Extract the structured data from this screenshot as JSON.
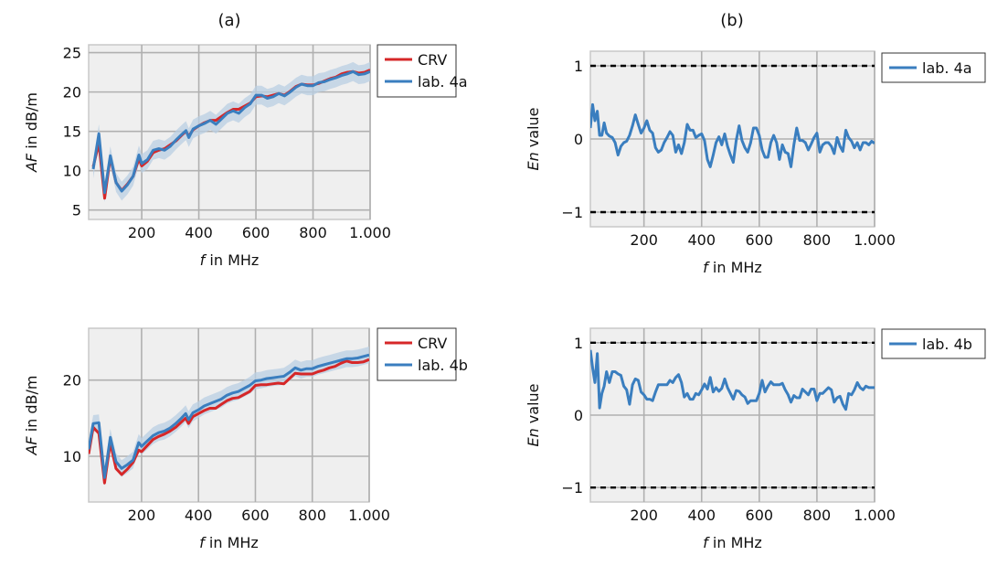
{
  "figure": {
    "panel_labels": [
      "(a)",
      "(b)"
    ]
  },
  "chart_data": [
    {
      "id": "af-4a",
      "panel": "(a)",
      "type": "line",
      "title": "",
      "xlabel_italic": "f",
      "xlabel_rest": " in MHz",
      "ylabel_italic": "AF",
      "ylabel_rest": " in dB/m",
      "xlim": [
        14,
        1000
      ],
      "ylim": [
        3.8,
        26.0
      ],
      "grid": true,
      "xticks": [
        200,
        400,
        600,
        800,
        1000
      ],
      "xtick_labels": [
        "200",
        "400",
        "600",
        "800",
        "1.000"
      ],
      "yticks": [
        5,
        10,
        15,
        20,
        25
      ],
      "ytick_labels": [
        "5",
        "10",
        "15",
        "20",
        "25"
      ],
      "legend_position": "outside-top-right",
      "x": [
        30,
        50,
        70,
        90,
        110,
        130,
        150,
        170,
        190,
        200,
        220,
        240,
        260,
        280,
        300,
        320,
        340,
        355,
        365,
        380,
        400,
        420,
        440,
        460,
        480,
        500,
        520,
        540,
        560,
        580,
        600,
        620,
        640,
        660,
        680,
        700,
        720,
        740,
        760,
        780,
        800,
        820,
        840,
        860,
        880,
        900,
        920,
        940,
        960,
        980,
        1000
      ],
      "series": [
        {
          "name": "CRV",
          "color": "#d62728",
          "values": [
            10.5,
            13.5,
            6.5,
            11.7,
            8.5,
            7.5,
            8.3,
            9.3,
            11.5,
            10.6,
            11.2,
            12.3,
            12.6,
            12.8,
            13.3,
            13.8,
            14.5,
            15.0,
            14.4,
            15.2,
            15.7,
            16.1,
            16.4,
            16.4,
            16.9,
            17.4,
            17.8,
            17.8,
            18.2,
            18.6,
            19.4,
            19.5,
            19.4,
            19.6,
            19.8,
            19.6,
            20.1,
            20.7,
            21.0,
            20.9,
            20.9,
            21.1,
            21.4,
            21.7,
            21.9,
            22.3,
            22.5,
            22.6,
            22.4,
            22.5,
            22.8
          ]
        },
        {
          "name": "lab. 4a",
          "color": "#3a7ebf",
          "band_color": "#b9cfe3",
          "values": [
            10.2,
            14.7,
            7.2,
            11.9,
            8.5,
            7.4,
            8.2,
            9.3,
            12.0,
            10.9,
            11.4,
            12.6,
            12.8,
            12.6,
            13.1,
            13.9,
            14.6,
            15.1,
            14.2,
            15.3,
            15.7,
            16.0,
            16.4,
            15.9,
            16.6,
            17.3,
            17.6,
            17.3,
            18.0,
            18.5,
            19.6,
            19.6,
            19.2,
            19.4,
            19.8,
            19.5,
            20.0,
            20.6,
            21.0,
            20.8,
            20.8,
            21.2,
            21.3,
            21.6,
            21.8,
            22.1,
            22.3,
            22.6,
            22.2,
            22.3,
            22.6
          ],
          "band_halfwidth_db": 1.2
        }
      ]
    },
    {
      "id": "en-4a",
      "panel": "(b)",
      "type": "line",
      "title": "",
      "xlabel_italic": "f",
      "xlabel_rest": " in MHz",
      "ylabel_italic": "En",
      "ylabel_rest": " value",
      "xlim": [
        14,
        1000
      ],
      "ylim": [
        -1.2,
        1.2
      ],
      "grid": true,
      "xticks": [
        200,
        400,
        600,
        800,
        1000
      ],
      "xtick_labels": [
        "200",
        "400",
        "600",
        "800",
        "1.000"
      ],
      "yticks": [
        -1,
        0,
        1
      ],
      "ytick_labels": [
        "−1",
        "0",
        "1"
      ],
      "reference_lines": [
        1,
        -1
      ],
      "legend_position": "outside-top-right",
      "series": [
        {
          "name": "lab. 4a",
          "color": "#3a7ebf",
          "x": [
            14,
            22,
            30,
            38,
            46,
            54,
            62,
            70,
            80,
            90,
            100,
            110,
            120,
            130,
            140,
            150,
            160,
            170,
            180,
            190,
            200,
            210,
            220,
            230,
            240,
            250,
            260,
            270,
            280,
            290,
            300,
            310,
            320,
            330,
            340,
            350,
            360,
            370,
            380,
            390,
            400,
            410,
            420,
            430,
            440,
            450,
            460,
            470,
            480,
            490,
            500,
            510,
            520,
            530,
            540,
            550,
            560,
            570,
            580,
            590,
            600,
            610,
            620,
            630,
            640,
            650,
            660,
            670,
            680,
            690,
            700,
            710,
            720,
            730,
            740,
            750,
            760,
            770,
            780,
            790,
            800,
            810,
            820,
            830,
            840,
            850,
            860,
            870,
            880,
            890,
            900,
            910,
            920,
            930,
            940,
            950,
            960,
            970,
            980,
            990,
            1000
          ],
          "values": [
            0.15,
            0.47,
            0.25,
            0.38,
            0.05,
            0.05,
            0.22,
            0.08,
            0.04,
            0.02,
            -0.05,
            -0.22,
            -0.1,
            -0.05,
            -0.03,
            0.05,
            0.18,
            0.33,
            0.2,
            0.08,
            0.15,
            0.25,
            0.12,
            0.08,
            -0.12,
            -0.18,
            -0.15,
            -0.05,
            0.02,
            0.1,
            0.05,
            -0.18,
            -0.08,
            -0.2,
            -0.05,
            0.2,
            0.12,
            0.12,
            0.02,
            0.05,
            0.07,
            -0.02,
            -0.28,
            -0.38,
            -0.22,
            -0.05,
            0.03,
            -0.08,
            0.07,
            -0.1,
            -0.22,
            -0.32,
            -0.02,
            0.18,
            -0.02,
            -0.12,
            -0.18,
            -0.05,
            0.15,
            0.15,
            0.05,
            -0.15,
            -0.25,
            -0.25,
            -0.05,
            0.05,
            -0.05,
            -0.28,
            -0.08,
            -0.18,
            -0.2,
            -0.38,
            -0.08,
            0.15,
            -0.02,
            -0.02,
            -0.05,
            -0.15,
            -0.07,
            0.02,
            0.08,
            -0.18,
            -0.08,
            -0.05,
            -0.05,
            -0.1,
            -0.2,
            0.02,
            -0.1,
            -0.17,
            0.12,
            0.02,
            -0.03,
            -0.12,
            -0.05,
            -0.15,
            -0.05,
            -0.05,
            -0.08,
            -0.03,
            -0.06
          ]
        }
      ]
    },
    {
      "id": "af-4b",
      "panel": "(a)",
      "type": "line",
      "title": "",
      "xlabel_italic": "f",
      "xlabel_rest": " in MHz",
      "ylabel_italic": "AF",
      "ylabel_rest": " in dB/m",
      "xlim": [
        14,
        1000
      ],
      "ylim": [
        4.0,
        26.8
      ],
      "grid": true,
      "xticks": [
        200,
        400,
        600,
        800,
        1000
      ],
      "xtick_labels": [
        "200",
        "400",
        "600",
        "800",
        "1.000"
      ],
      "yticks": [
        10,
        20
      ],
      "ytick_labels": [
        "10",
        "20"
      ],
      "legend_position": "outside-top-right",
      "x": [
        14,
        30,
        50,
        70,
        90,
        110,
        130,
        150,
        170,
        190,
        200,
        220,
        240,
        260,
        280,
        300,
        320,
        340,
        355,
        365,
        380,
        400,
        420,
        440,
        460,
        480,
        500,
        520,
        540,
        560,
        580,
        600,
        620,
        640,
        660,
        680,
        700,
        720,
        740,
        760,
        780,
        800,
        820,
        840,
        860,
        880,
        900,
        920,
        940,
        960,
        980,
        1000
      ],
      "series": [
        {
          "name": "CRV",
          "color": "#d62728",
          "values": [
            10.3,
            13.8,
            13.0,
            6.5,
            11.8,
            8.4,
            7.6,
            8.3,
            9.2,
            10.8,
            10.6,
            11.4,
            12.2,
            12.6,
            12.9,
            13.3,
            13.8,
            14.5,
            15.0,
            14.3,
            15.2,
            15.6,
            16.0,
            16.3,
            16.3,
            16.8,
            17.3,
            17.6,
            17.7,
            18.1,
            18.5,
            19.3,
            19.4,
            19.4,
            19.5,
            19.6,
            19.5,
            20.2,
            20.9,
            20.8,
            20.8,
            20.8,
            21.1,
            21.3,
            21.6,
            21.8,
            22.2,
            22.5,
            22.3,
            22.3,
            22.4,
            22.7
          ]
        },
        {
          "name": "lab. 4b",
          "color": "#3a7ebf",
          "band_color": "#b9cfe3",
          "values": [
            10.9,
            14.3,
            14.4,
            7.2,
            12.5,
            9.3,
            8.4,
            8.9,
            9.5,
            11.8,
            11.3,
            12.0,
            12.7,
            13.1,
            13.3,
            13.7,
            14.3,
            15.0,
            15.6,
            14.8,
            15.7,
            16.1,
            16.6,
            16.9,
            17.2,
            17.5,
            18.0,
            18.3,
            18.5,
            18.9,
            19.3,
            19.9,
            20.0,
            20.2,
            20.3,
            20.4,
            20.5,
            21.0,
            21.6,
            21.3,
            21.5,
            21.5,
            21.8,
            22.0,
            22.2,
            22.4,
            22.6,
            22.8,
            22.8,
            22.9,
            23.1,
            23.3
          ],
          "band_halfwidth_db": 1.1
        }
      ]
    },
    {
      "id": "en-4b",
      "panel": "(b)",
      "type": "line",
      "title": "",
      "xlabel_italic": "f",
      "xlabel_rest": " in MHz",
      "ylabel_italic": "En",
      "ylabel_rest": " value",
      "xlim": [
        14,
        1000
      ],
      "ylim": [
        -1.2,
        1.2
      ],
      "grid": true,
      "xticks": [
        200,
        400,
        600,
        800,
        1000
      ],
      "xtick_labels": [
        "200",
        "400",
        "600",
        "800",
        "1.000"
      ],
      "yticks": [
        -1,
        0,
        1
      ],
      "ytick_labels": [
        "−1",
        "0",
        "1"
      ],
      "reference_lines": [
        1,
        -1
      ],
      "legend_position": "outside-top-right",
      "series": [
        {
          "name": "lab. 4b",
          "color": "#3a7ebf",
          "x": [
            14,
            22,
            30,
            38,
            46,
            54,
            62,
            70,
            80,
            90,
            100,
            110,
            120,
            130,
            140,
            150,
            160,
            170,
            180,
            190,
            200,
            210,
            220,
            230,
            240,
            250,
            260,
            270,
            280,
            290,
            300,
            310,
            320,
            330,
            340,
            350,
            360,
            370,
            380,
            390,
            400,
            410,
            420,
            430,
            440,
            450,
            460,
            470,
            480,
            490,
            500,
            510,
            520,
            530,
            540,
            550,
            560,
            570,
            580,
            590,
            600,
            610,
            620,
            630,
            640,
            650,
            660,
            670,
            680,
            690,
            700,
            710,
            720,
            730,
            740,
            750,
            760,
            770,
            780,
            790,
            800,
            810,
            820,
            830,
            840,
            850,
            860,
            870,
            880,
            890,
            900,
            910,
            920,
            930,
            940,
            950,
            960,
            970,
            980,
            990,
            1000
          ],
          "values": [
            0.9,
            0.65,
            0.45,
            0.85,
            0.1,
            0.3,
            0.4,
            0.6,
            0.45,
            0.6,
            0.6,
            0.57,
            0.55,
            0.4,
            0.35,
            0.15,
            0.42,
            0.5,
            0.48,
            0.32,
            0.28,
            0.22,
            0.22,
            0.2,
            0.32,
            0.42,
            0.42,
            0.42,
            0.42,
            0.48,
            0.45,
            0.52,
            0.56,
            0.45,
            0.25,
            0.3,
            0.22,
            0.22,
            0.3,
            0.28,
            0.35,
            0.43,
            0.36,
            0.52,
            0.32,
            0.38,
            0.33,
            0.37,
            0.5,
            0.38,
            0.3,
            0.22,
            0.34,
            0.33,
            0.28,
            0.25,
            0.16,
            0.2,
            0.2,
            0.2,
            0.3,
            0.48,
            0.32,
            0.4,
            0.46,
            0.42,
            0.42,
            0.42,
            0.44,
            0.35,
            0.28,
            0.18,
            0.27,
            0.24,
            0.24,
            0.36,
            0.32,
            0.28,
            0.36,
            0.36,
            0.2,
            0.3,
            0.3,
            0.34,
            0.38,
            0.35,
            0.18,
            0.24,
            0.26,
            0.15,
            0.08,
            0.3,
            0.28,
            0.35,
            0.45,
            0.38,
            0.35,
            0.4,
            0.38,
            0.38,
            0.38
          ]
        }
      ]
    }
  ]
}
